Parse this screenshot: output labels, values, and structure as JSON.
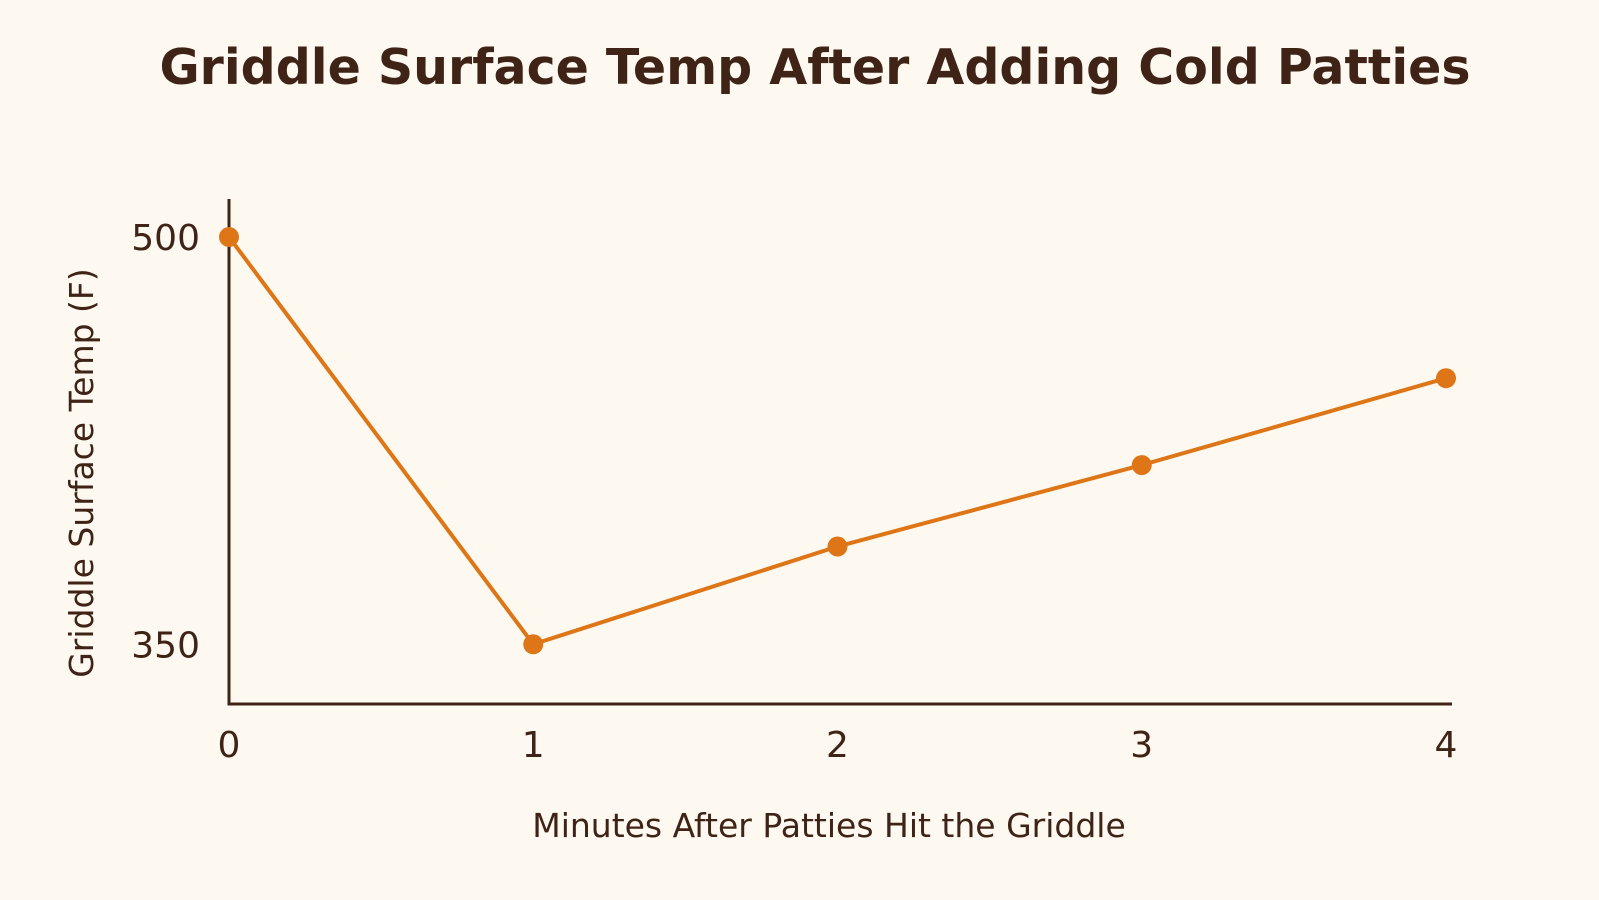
{
  "chart_data": {
    "type": "line",
    "title": "Griddle Surface Temp After Adding Cold Patties",
    "xlabel": "Minutes After Patties Hit the Griddle",
    "ylabel": "Griddle Surface Temp (F)",
    "x": [
      0,
      1,
      2,
      3,
      4
    ],
    "xticks": [
      "0",
      "1",
      "2",
      "3",
      "4"
    ],
    "yticks": [
      "350",
      "500"
    ],
    "ylim": [
      328,
      514
    ],
    "series": [
      {
        "values": [
          500,
          350,
          386,
          416,
          448
        ]
      }
    ],
    "grid": false,
    "legend": "none",
    "colors": {
      "line": "#de7516",
      "axis": "#3e2316",
      "text": "#3e2316",
      "background": "#fdf9f1"
    }
  }
}
